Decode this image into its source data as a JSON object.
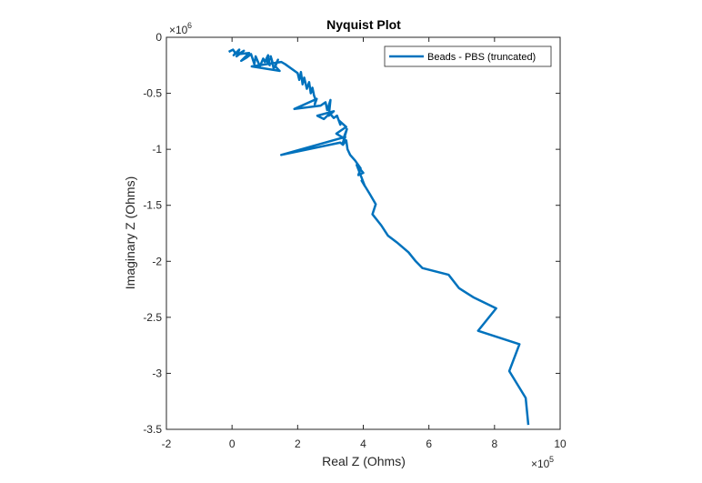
{
  "chart_data": {
    "type": "line",
    "title": "Nyquist Plot",
    "xlabel": "Real Z (Ohms)",
    "ylabel": "Imaginary Z (Ohms)",
    "xlim": [
      -200000,
      1000000
    ],
    "ylim": [
      -3500000,
      0
    ],
    "x_ticks": [
      -200000,
      0,
      200000,
      400000,
      600000,
      800000,
      1000000
    ],
    "x_tick_labels": [
      "-2",
      "0",
      "2",
      "4",
      "6",
      "8",
      "10"
    ],
    "x_exponent_base": "×10",
    "x_exponent": "5",
    "y_ticks": [
      0,
      -500000,
      -1000000,
      -1500000,
      -2000000,
      -2500000,
      -3000000,
      -3500000
    ],
    "y_tick_labels": [
      "0",
      "-0.5",
      "-1",
      "-1.5",
      "-2",
      "-2.5",
      "-3",
      "-3.5"
    ],
    "y_exponent_base": "×10",
    "y_exponent": "6",
    "grid": false,
    "legend_position": "top-right",
    "series": [
      {
        "name": "Beads - PBS (truncated)",
        "color": "#0072bd",
        "x": [
          -10000,
          3000,
          10000,
          5000,
          22000,
          14000,
          36000,
          20000,
          52000,
          28000,
          45000,
          58000,
          68000,
          72000,
          85000,
          95000,
          100000,
          110000,
          115000,
          105000,
          120000,
          124000,
          118000,
          127000,
          140000,
          132000,
          145000,
          60000,
          150000,
          162000,
          200000,
          205000,
          210000,
          215000,
          220000,
          228000,
          235000,
          240000,
          245000,
          250000,
          255000,
          252000,
          258000,
          190000,
          270000,
          285000,
          290000,
          300000,
          295000,
          310000,
          260000,
          280000,
          298000,
          310000,
          320000,
          330000,
          325000,
          348000,
          318000,
          340000,
          350000,
          338000,
          345000,
          150000,
          330000,
          338000,
          348000,
          352000,
          360000,
          375000,
          392000,
          385000,
          400000,
          380000,
          405000,
          395000,
          420000,
          438000,
          428000,
          455000,
          475000,
          502000,
          538000,
          560000,
          580000,
          660000,
          692000,
          735000,
          805000,
          750000,
          876000,
          845000,
          895000,
          903000
        ],
        "y": [
          -130000,
          -110000,
          -140000,
          -160000,
          -110000,
          -170000,
          -120000,
          -150000,
          -140000,
          -210000,
          -180000,
          -150000,
          -240000,
          -170000,
          -260000,
          -190000,
          -220000,
          -160000,
          -250000,
          -210000,
          -190000,
          -230000,
          -170000,
          -280000,
          -200000,
          -260000,
          -300000,
          -260000,
          -220000,
          -240000,
          -320000,
          -380000,
          -310000,
          -420000,
          -360000,
          -460000,
          -400000,
          -500000,
          -450000,
          -520000,
          -560000,
          -600000,
          -550000,
          -640000,
          -610000,
          -580000,
          -650000,
          -560000,
          -700000,
          -660000,
          -700000,
          -730000,
          -680000,
          -720000,
          -700000,
          -780000,
          -740000,
          -800000,
          -860000,
          -900000,
          -820000,
          -940000,
          -890000,
          -1050000,
          -940000,
          -960000,
          -920000,
          -1000000,
          -1050000,
          -1100000,
          -1170000,
          -1230000,
          -1210000,
          -1140000,
          -1330000,
          -1280000,
          -1400000,
          -1490000,
          -1580000,
          -1680000,
          -1770000,
          -1830000,
          -1920000,
          -2000000,
          -2060000,
          -2120000,
          -2240000,
          -2320000,
          -2420000,
          -2620000,
          -2740000,
          -2980000,
          -3220000,
          -3460000
        ]
      }
    ]
  }
}
